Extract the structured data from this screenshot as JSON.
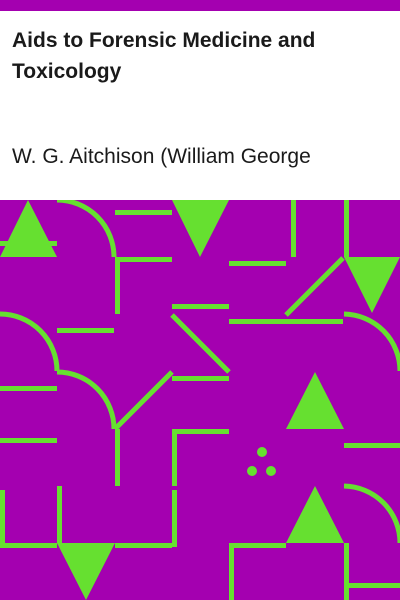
{
  "cover": {
    "title": "Aids to Forensic Medicine and Toxicology",
    "author": "W. G. Aitchison (William George"
  },
  "colors": {
    "background": "#a400b0",
    "accent": "#66e030",
    "text": "#1a1a1a",
    "panel": "#ffffff"
  },
  "pattern": {
    "shapes": [
      "triangle-up",
      "triangle-down",
      "quarter-arc",
      "bar",
      "diagonal-line",
      "three-dots"
    ]
  }
}
